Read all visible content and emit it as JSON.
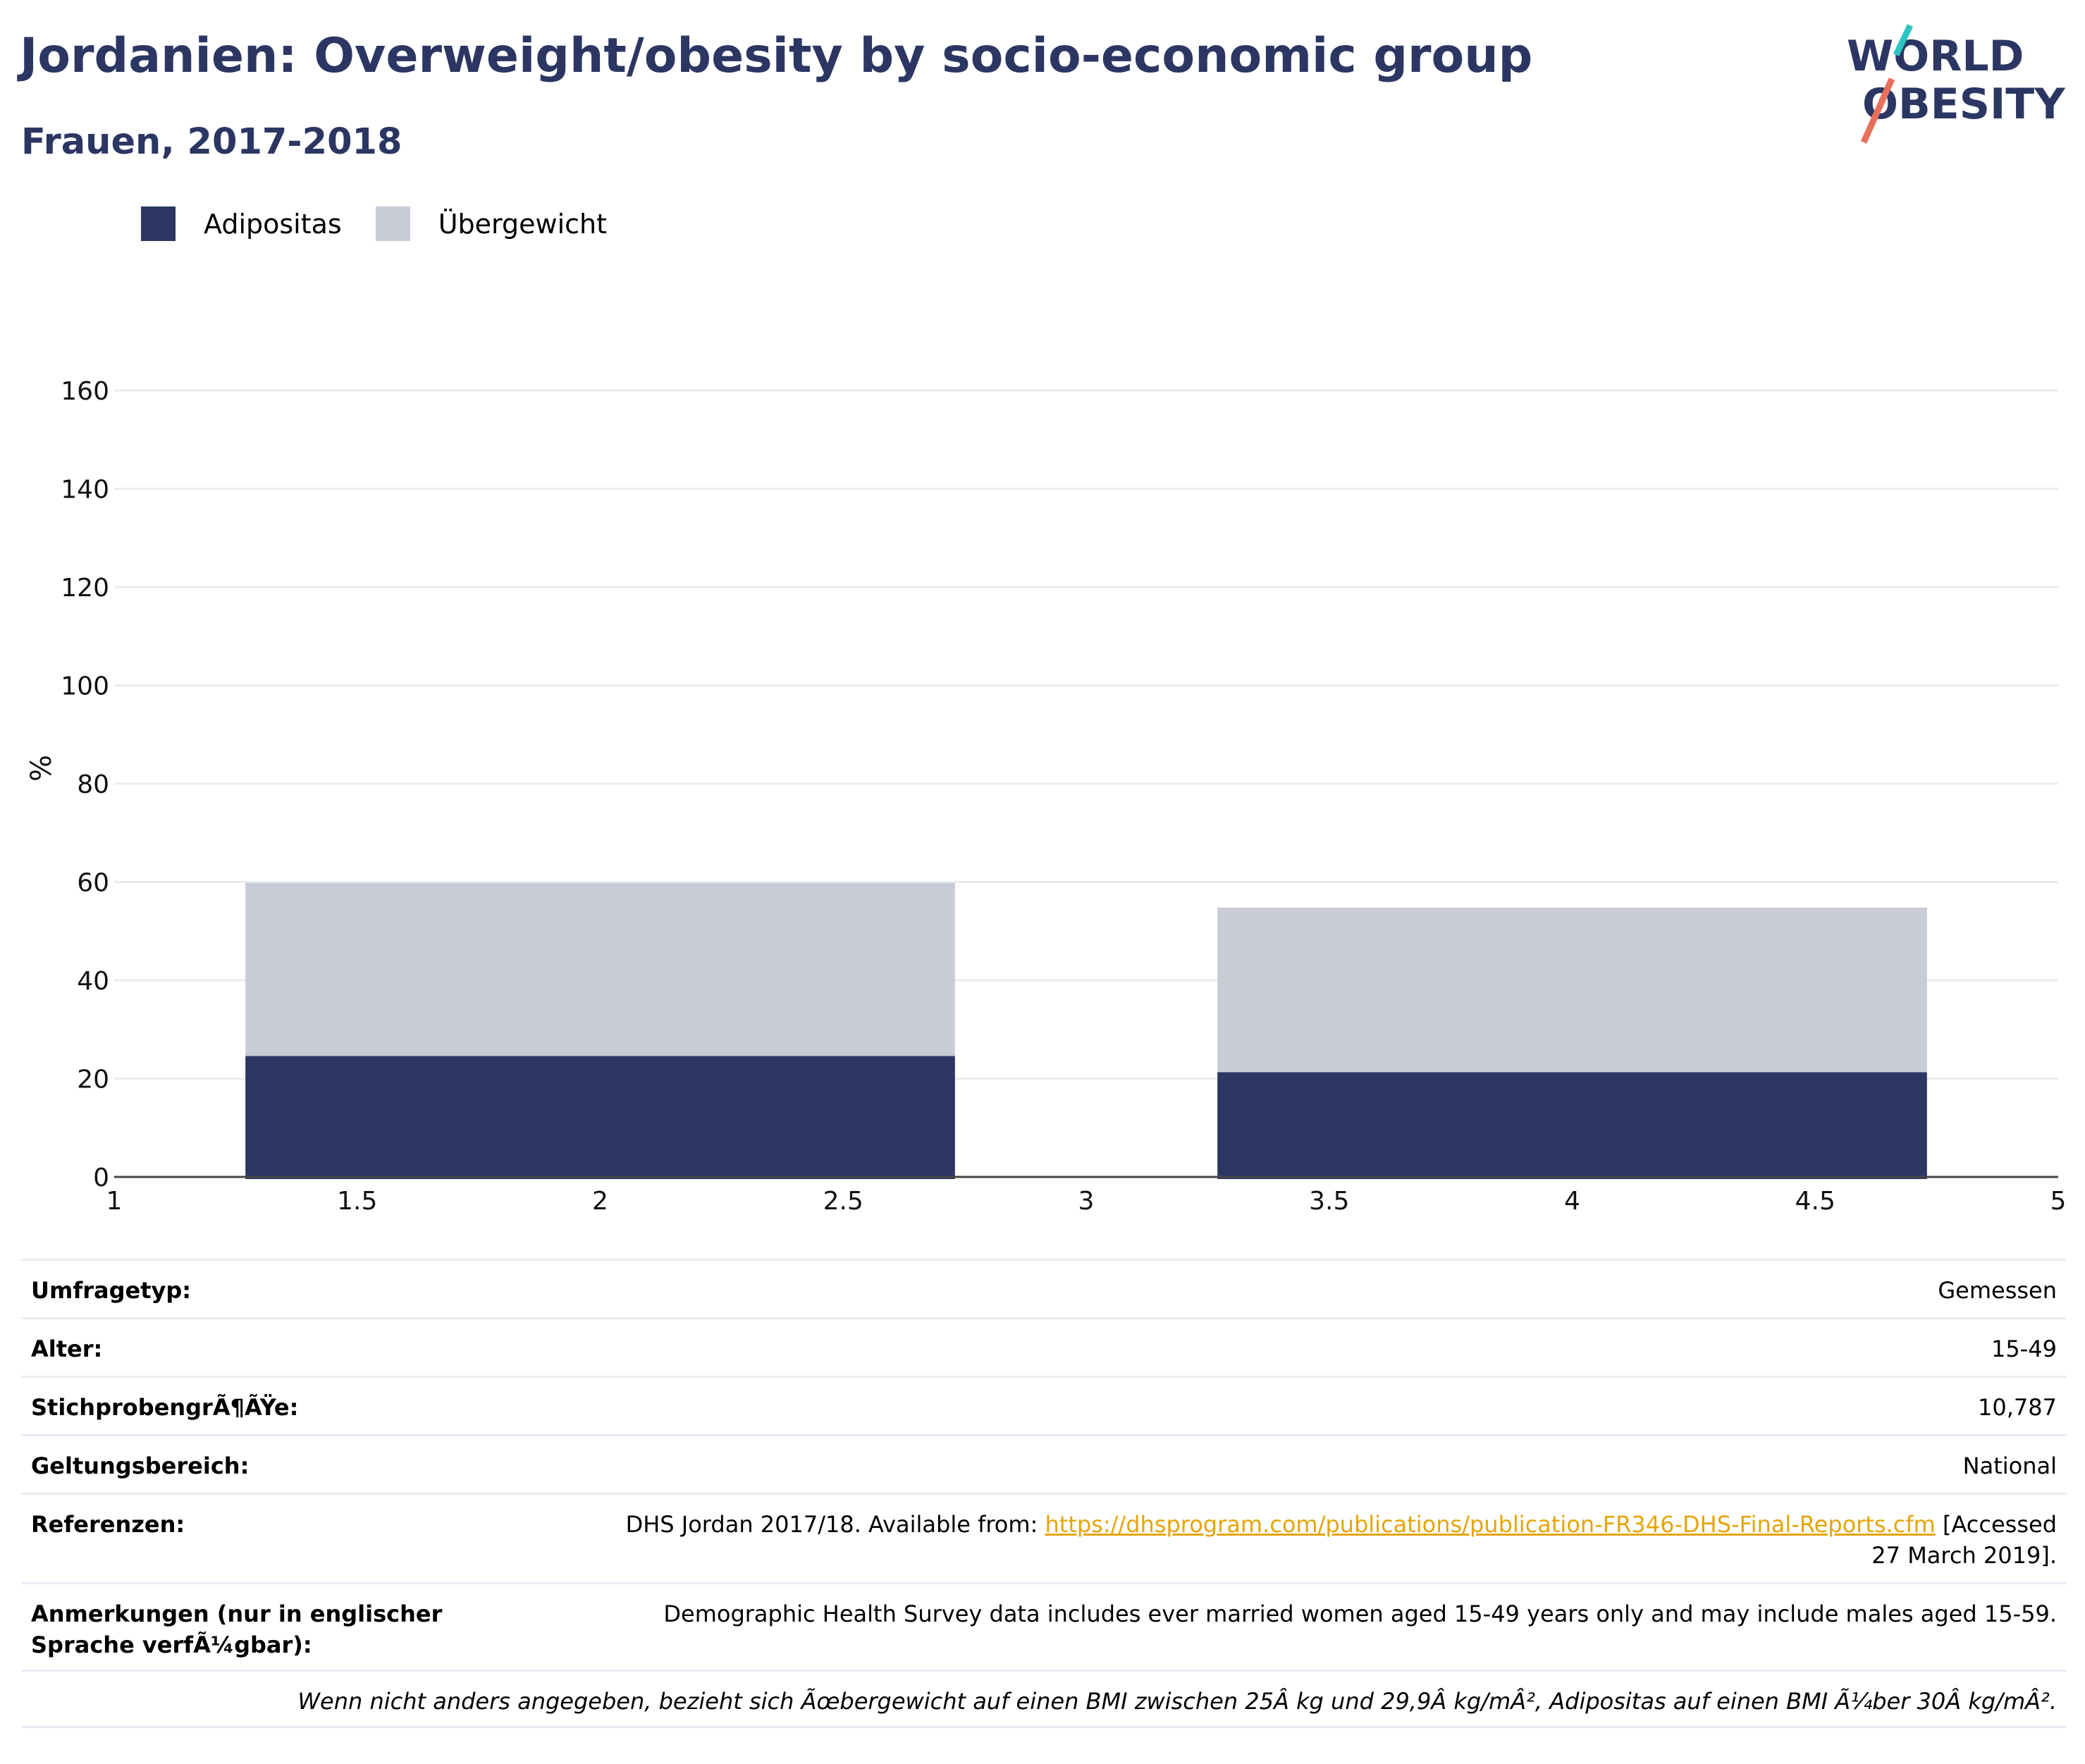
{
  "header": {
    "title": "Jordanien: Overweight/obesity by socio-economic group",
    "subtitle": "Frauen, 2017-2018"
  },
  "logo": {
    "line1": "WORLD",
    "line2": "OBESITY",
    "colors": {
      "navy": "#2b3663",
      "teal": "#2ec4c2",
      "coral": "#e8705a"
    }
  },
  "legend": {
    "obesity_label": "Adipositas",
    "overweight_label": "Übergewicht"
  },
  "colors": {
    "obesity": "#2b3663",
    "overweight": "#c9ccd7",
    "grid": "#e9ecf2",
    "axis": "#444444"
  },
  "chart_data": {
    "type": "bar",
    "stacked": true,
    "ylabel": "%",
    "xlim": [
      1,
      5
    ],
    "ylim": [
      0,
      160
    ],
    "x_ticks": [
      "1",
      "1.5",
      "2",
      "2.5",
      "3",
      "3.5",
      "4",
      "4.5",
      "5"
    ],
    "y_ticks": [
      "0",
      "20",
      "40",
      "60",
      "80",
      "100",
      "120",
      "140",
      "160"
    ],
    "grid": true,
    "legend_position": "top-left",
    "bars": [
      {
        "x_start": 1.27,
        "x_end": 2.73,
        "obesity": 24.6,
        "overweight_total": 59.8
      },
      {
        "x_start": 3.27,
        "x_end": 4.73,
        "obesity": 21.3,
        "overweight_total": 54.8
      }
    ],
    "series": [
      {
        "name": "Adipositas",
        "values": [
          24.6,
          21.3
        ]
      },
      {
        "name": "Übergewicht",
        "values": [
          35.2,
          33.5
        ]
      }
    ]
  },
  "info_table": {
    "survey_type_label": "Umfragetyp:",
    "survey_type_value": "Gemessen",
    "age_label": "Alter:",
    "age_value": "15-49",
    "sample_size_label": "StichprobengrÃ¶ÃŸe:",
    "sample_size_value": "10,787",
    "scope_label": "Geltungsbereich:",
    "scope_value": "National",
    "references_label": "Referenzen:",
    "references_prefix": "DHS Jordan 2017/18. Available from: ",
    "references_link": "https://dhsprogram.com/publications/publication-FR346-DHS-Final-Reports.cfm",
    "references_suffix": " [Accessed 27 March 2019].",
    "notes_label": "Anmerkungen (nur in englischer Sprache verfÃ¼gbar):",
    "notes_value": "Demographic Health Survey data includes ever married women aged 15-49 years only and may include males aged 15-59.",
    "footnote": "Wenn nicht anders angegeben, bezieht sich Ãœbergewicht auf einen BMI zwischen 25Â kg und 29,9Â kg/mÂ², Adipositas auf einen BMI Ã¼ber 30Â kg/mÂ²."
  }
}
